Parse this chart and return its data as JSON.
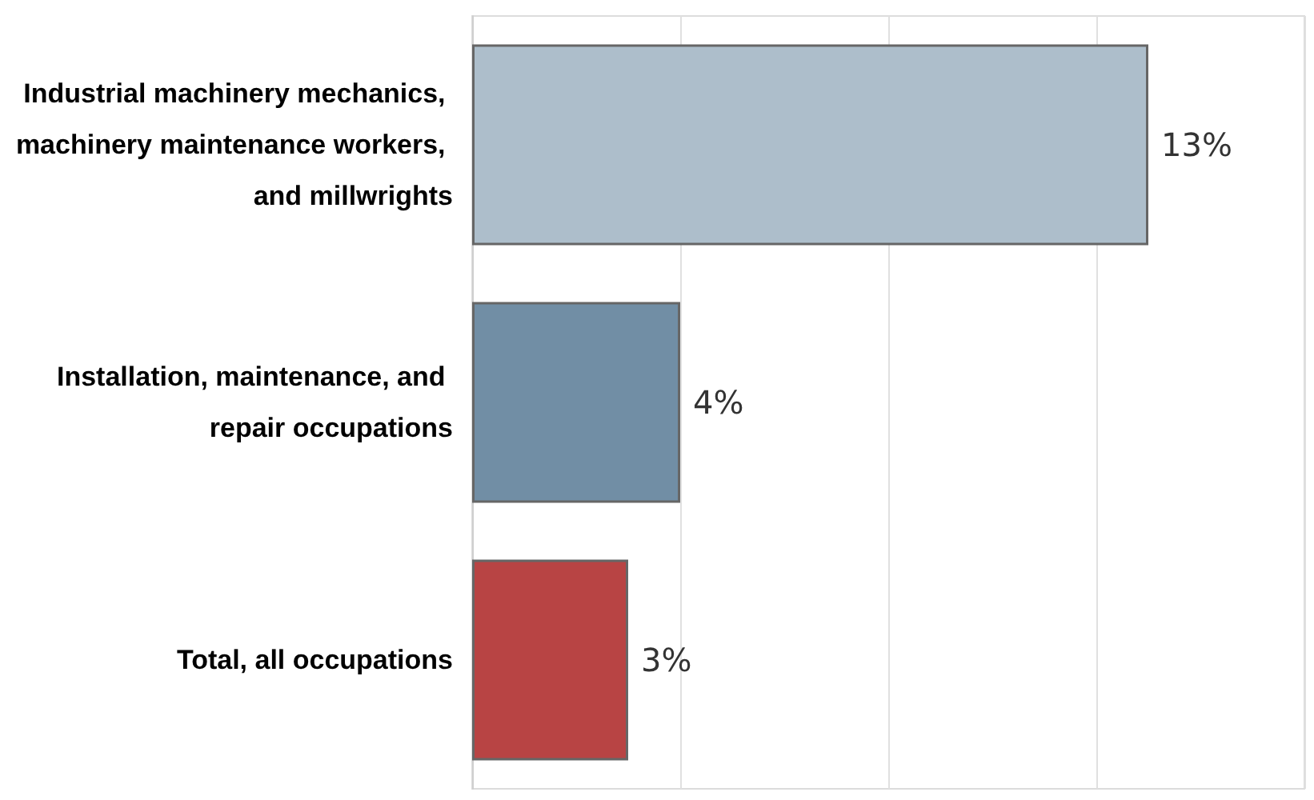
{
  "chart_data": {
    "type": "bar",
    "orientation": "horizontal",
    "categories": [
      "Industrial machinery mechanics, machinery maintenance workers, and millwrights",
      "Installation, maintenance, and repair occupations",
      "Total, all occupations"
    ],
    "values": [
      13,
      4,
      3
    ],
    "value_labels": [
      "13%",
      "4%",
      "3%"
    ],
    "colors": [
      "#adbecb",
      "#718ea5",
      "#b84444"
    ],
    "xlim": [
      0,
      16
    ],
    "xticks": [
      {
        "value": 0,
        "label": null
      },
      {
        "value": 4,
        "label": null
      },
      {
        "value": 8,
        "label": null
      },
      {
        "value": 12,
        "label": null
      },
      {
        "value": 16,
        "label": null
      }
    ],
    "tick_labels": "y",
    "grid": "x"
  }
}
